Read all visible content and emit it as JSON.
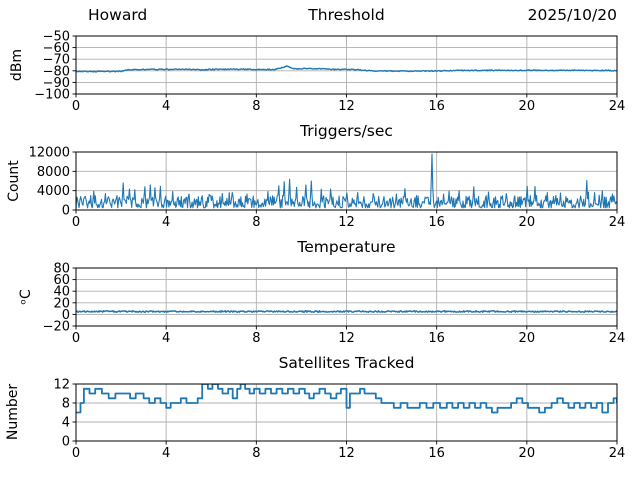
{
  "figure": {
    "background": "#ffffff",
    "line_color": "#1f77b4",
    "grid_color": "#b0b0b0",
    "spine_color": "#000000"
  },
  "chart_data": [
    {
      "type": "line",
      "title": "Threshold",
      "title_left": "Howard",
      "title_right": "2025/10/20",
      "ylabel": "dBm",
      "xlim": [
        0,
        24
      ],
      "ylim": [
        -100,
        -50
      ],
      "xticks": [
        0,
        4,
        8,
        12,
        16,
        20,
        24
      ],
      "xtick_labels": [
        "0",
        "4",
        "8",
        "12",
        "16",
        "20",
        "24"
      ],
      "yticks": [
        -100,
        -90,
        -80,
        -70,
        -60,
        -50
      ],
      "ytick_labels": [
        "−100",
        "−90",
        "−80",
        "−70",
        "−60",
        "−50"
      ],
      "grid": true,
      "line_color": "#1f77b4",
      "series": [
        {
          "name": "threshold-dbm",
          "kind": "noisy-line",
          "noise": 0.4,
          "keypoints": [
            [
              0,
              -80.6
            ],
            [
              1.5,
              -80.5
            ],
            [
              2.0,
              -80.4
            ],
            [
              2.3,
              -79.2
            ],
            [
              3,
              -78.9
            ],
            [
              4,
              -78.8
            ],
            [
              5,
              -78.6
            ],
            [
              5.6,
              -79.3
            ],
            [
              6,
              -78.8
            ],
            [
              7,
              -78.6
            ],
            [
              8,
              -78.8
            ],
            [
              8.8,
              -78.9
            ],
            [
              9.1,
              -77.5
            ],
            [
              9.35,
              -75.8
            ],
            [
              9.6,
              -77.8
            ],
            [
              9.8,
              -78.3
            ],
            [
              10.2,
              -78.0
            ],
            [
              10.6,
              -78.4
            ],
            [
              11,
              -78.2
            ],
            [
              11.4,
              -78.9
            ],
            [
              12,
              -78.7
            ],
            [
              12.4,
              -78.9
            ],
            [
              12.8,
              -79.6
            ],
            [
              13.2,
              -80.0
            ],
            [
              14,
              -80.2
            ],
            [
              15,
              -80.3
            ],
            [
              16,
              -80.1
            ],
            [
              17,
              -79.7
            ],
            [
              18,
              -79.6
            ],
            [
              19,
              -79.7
            ],
            [
              20,
              -79.5
            ],
            [
              21,
              -79.6
            ],
            [
              22,
              -79.6
            ],
            [
              23,
              -79.7
            ],
            [
              24,
              -79.7
            ]
          ]
        }
      ]
    },
    {
      "type": "line",
      "title": "Triggers/sec",
      "ylabel": "Count",
      "xlim": [
        0,
        24
      ],
      "ylim": [
        0,
        12000
      ],
      "xticks": [
        0,
        4,
        8,
        12,
        16,
        20,
        24
      ],
      "xtick_labels": [
        "0",
        "4",
        "8",
        "12",
        "16",
        "20",
        "24"
      ],
      "yticks": [
        0,
        4000,
        8000,
        12000
      ],
      "ytick_labels": [
        "0",
        "4000",
        "8000",
        "12000"
      ],
      "grid": true,
      "line_color": "#1f77b4",
      "series": [
        {
          "name": "triggers-per-sec",
          "kind": "noisy-baseline",
          "baseline_min": 450,
          "baseline_max": 3000,
          "burst_chance": 0.07,
          "burst_extra": 1300,
          "spikes": [
            [
              0.8,
              3900
            ],
            [
              1.3,
              3400
            ],
            [
              2.1,
              5600
            ],
            [
              2.37,
              4350
            ],
            [
              2.6,
              4200
            ],
            [
              3.05,
              4800
            ],
            [
              3.3,
              5200
            ],
            [
              3.5,
              4600
            ],
            [
              3.75,
              4900
            ],
            [
              4.3,
              3800
            ],
            [
              5.0,
              3300
            ],
            [
              5.9,
              3200
            ],
            [
              6.5,
              3400
            ],
            [
              6.95,
              3600
            ],
            [
              7.6,
              3300
            ],
            [
              8.5,
              3800
            ],
            [
              9.0,
              5000
            ],
            [
              9.25,
              5850
            ],
            [
              9.47,
              6350
            ],
            [
              9.8,
              4700
            ],
            [
              10.2,
              5200
            ],
            [
              10.45,
              6000
            ],
            [
              10.9,
              4300
            ],
            [
              11.3,
              4300
            ],
            [
              12.0,
              3500
            ],
            [
              12.5,
              3600
            ],
            [
              13.2,
              3400
            ],
            [
              14.2,
              3300
            ],
            [
              14.6,
              4400
            ],
            [
              15.8,
              11600
            ],
            [
              16.3,
              3300
            ],
            [
              16.55,
              3900
            ],
            [
              17.0,
              4000
            ],
            [
              17.65,
              4800
            ],
            [
              18.3,
              3700
            ],
            [
              19.1,
              3400
            ],
            [
              20.0,
              4900
            ],
            [
              20.35,
              4850
            ],
            [
              20.9,
              3600
            ],
            [
              21.5,
              3500
            ],
            [
              22.65,
              6100
            ],
            [
              23.0,
              3600
            ],
            [
              23.35,
              4000
            ],
            [
              23.8,
              3300
            ]
          ]
        }
      ]
    },
    {
      "type": "line",
      "title": "Temperature",
      "ylabel": "ᵒC",
      "xlim": [
        0,
        24
      ],
      "ylim": [
        -20,
        80
      ],
      "xticks": [
        0,
        4,
        8,
        12,
        16,
        20,
        24
      ],
      "xtick_labels": [
        "0",
        "4",
        "8",
        "12",
        "16",
        "20",
        "24"
      ],
      "yticks": [
        -20,
        0,
        20,
        40,
        60,
        80
      ],
      "ytick_labels": [
        "−20",
        "0",
        "20",
        "40",
        "60",
        "80"
      ],
      "grid": true,
      "line_color": "#1f77b4",
      "series": [
        {
          "name": "temperature-c",
          "kind": "noisy-line",
          "noise": 1.2,
          "keypoints": [
            [
              0,
              5
            ],
            [
              24,
              5
            ]
          ]
        }
      ]
    },
    {
      "type": "line",
      "title": "Satellites Tracked",
      "ylabel": "Number",
      "xlim": [
        0,
        24
      ],
      "ylim": [
        0,
        12
      ],
      "xticks": [
        0,
        4,
        8,
        12,
        16,
        20,
        24
      ],
      "xtick_labels": [
        "0",
        "4",
        "8",
        "12",
        "16",
        "20",
        "24"
      ],
      "yticks": [
        0,
        4,
        8,
        12
      ],
      "ytick_labels": [
        "0",
        "4",
        "8",
        "12"
      ],
      "grid": true,
      "line_color": "#1f77b4",
      "series": [
        {
          "name": "satellites-tracked",
          "kind": "steps",
          "keypoints": [
            [
              0,
              6
            ],
            [
              0.2,
              8
            ],
            [
              0.35,
              11
            ],
            [
              0.6,
              10
            ],
            [
              0.85,
              11
            ],
            [
              1.15,
              10
            ],
            [
              1.45,
              9
            ],
            [
              1.75,
              10
            ],
            [
              2.4,
              9
            ],
            [
              2.65,
              10
            ],
            [
              3.0,
              9
            ],
            [
              3.25,
              8
            ],
            [
              3.5,
              9
            ],
            [
              3.75,
              8
            ],
            [
              4.0,
              7
            ],
            [
              4.2,
              8
            ],
            [
              4.45,
              8
            ],
            [
              4.65,
              9
            ],
            [
              4.9,
              8
            ],
            [
              5.15,
              8
            ],
            [
              5.4,
              9
            ],
            [
              5.6,
              12
            ],
            [
              5.85,
              11
            ],
            [
              6.05,
              12
            ],
            [
              6.3,
              11
            ],
            [
              6.5,
              10
            ],
            [
              6.75,
              11
            ],
            [
              6.95,
              9
            ],
            [
              7.15,
              11
            ],
            [
              7.3,
              12
            ],
            [
              7.5,
              11
            ],
            [
              7.7,
              10
            ],
            [
              7.9,
              11
            ],
            [
              8.15,
              10
            ],
            [
              8.4,
              11
            ],
            [
              8.65,
              10
            ],
            [
              8.9,
              11
            ],
            [
              9.15,
              10
            ],
            [
              9.4,
              11
            ],
            [
              9.65,
              10
            ],
            [
              9.9,
              11
            ],
            [
              10.15,
              10
            ],
            [
              10.35,
              9
            ],
            [
              10.55,
              10
            ],
            [
              10.8,
              11
            ],
            [
              11.05,
              10
            ],
            [
              11.3,
              9
            ],
            [
              11.55,
              10
            ],
            [
              11.75,
              11
            ],
            [
              12.0,
              7
            ],
            [
              12.15,
              10
            ],
            [
              12.45,
              10
            ],
            [
              12.6,
              11
            ],
            [
              12.8,
              10
            ],
            [
              13.05,
              10
            ],
            [
              13.3,
              9
            ],
            [
              13.55,
              8
            ],
            [
              13.8,
              8
            ],
            [
              14.1,
              7
            ],
            [
              14.4,
              8
            ],
            [
              14.7,
              7
            ],
            [
              15.0,
              7
            ],
            [
              15.25,
              8
            ],
            [
              15.55,
              7
            ],
            [
              15.85,
              8
            ],
            [
              16.15,
              7
            ],
            [
              16.45,
              8
            ],
            [
              16.7,
              7
            ],
            [
              16.95,
              8
            ],
            [
              17.2,
              7
            ],
            [
              17.45,
              8
            ],
            [
              17.7,
              7
            ],
            [
              17.95,
              8
            ],
            [
              18.2,
              7
            ],
            [
              18.45,
              6
            ],
            [
              18.7,
              7
            ],
            [
              19.0,
              7
            ],
            [
              19.3,
              8
            ],
            [
              19.55,
              9
            ],
            [
              19.8,
              8
            ],
            [
              20.05,
              7
            ],
            [
              20.3,
              7
            ],
            [
              20.55,
              6
            ],
            [
              20.8,
              7
            ],
            [
              21.1,
              8
            ],
            [
              21.35,
              9
            ],
            [
              21.6,
              8
            ],
            [
              21.85,
              7
            ],
            [
              22.1,
              8
            ],
            [
              22.35,
              7
            ],
            [
              22.6,
              8
            ],
            [
              22.85,
              7
            ],
            [
              23.1,
              8
            ],
            [
              23.35,
              6
            ],
            [
              23.6,
              8
            ],
            [
              23.85,
              9
            ],
            [
              24,
              8
            ]
          ]
        }
      ]
    }
  ]
}
